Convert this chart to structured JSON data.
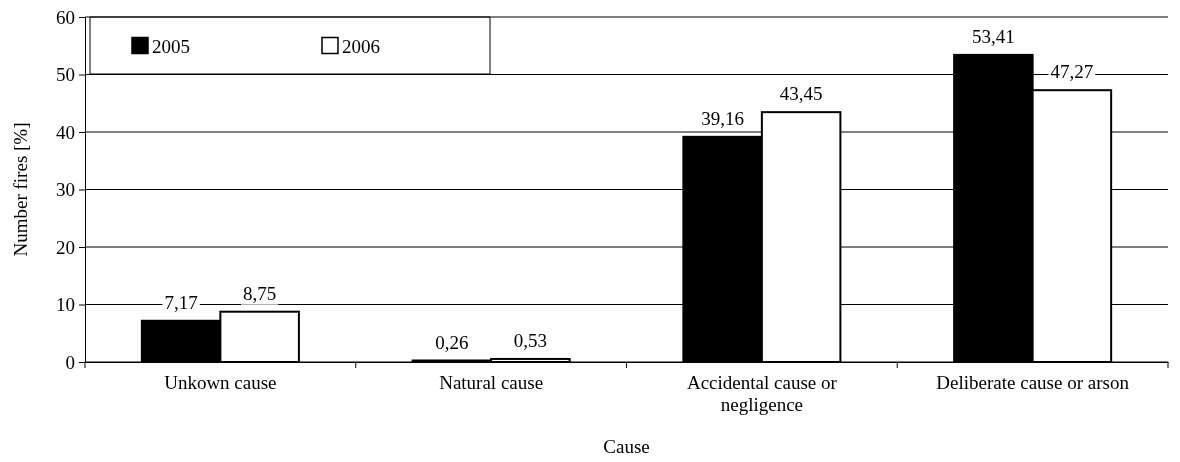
{
  "chart_data": {
    "type": "bar",
    "xlabel": "Cause",
    "ylabel": "Number fires [%]",
    "categories": [
      "Unkown cause",
      "Natural cause",
      "Accidental cause or negligence",
      "Deliberate cause or arson"
    ],
    "series": [
      {
        "name": "2005",
        "color": "#000000",
        "values": [
          7.17,
          0.26,
          39.16,
          53.41
        ],
        "value_labels": [
          "7,17",
          "0,26",
          "39,16",
          "53,41"
        ]
      },
      {
        "name": "2006",
        "color": "#ffffff",
        "values": [
          8.75,
          0.53,
          43.45,
          47.27
        ],
        "value_labels": [
          "8,75",
          "0,53",
          "43,45",
          "47,27"
        ]
      }
    ],
    "ylim": [
      0,
      60
    ],
    "yticks": [
      0,
      10,
      20,
      30,
      40,
      50,
      60
    ],
    "grid": "y",
    "legend": "top left"
  }
}
